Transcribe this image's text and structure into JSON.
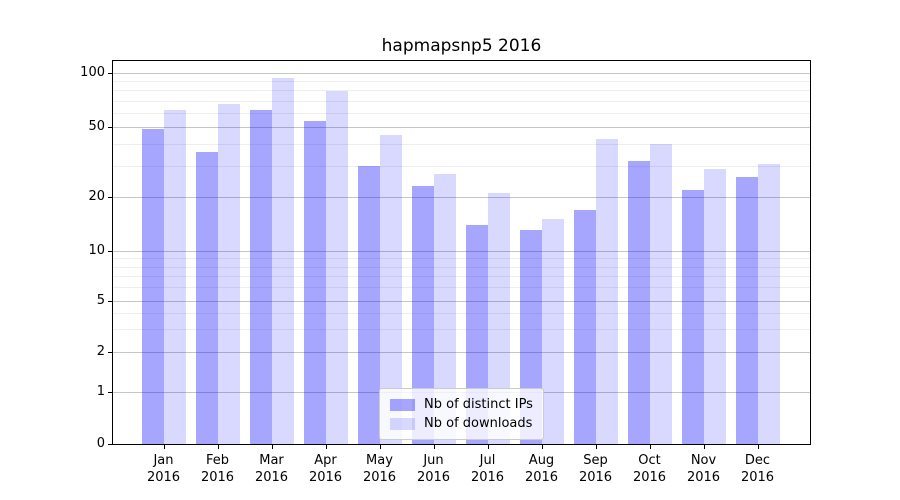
{
  "chart_data": {
    "type": "bar",
    "title": "hapmapsnp5 2016",
    "categories": [
      "Jan",
      "Feb",
      "Mar",
      "Apr",
      "May",
      "Jun",
      "Jul",
      "Aug",
      "Sep",
      "Oct",
      "Nov",
      "Dec"
    ],
    "x_tick_second_line": "2016",
    "series": [
      {
        "name": "Nb of distinct IPs",
        "color": "rgba(0,0,255,0.35)",
        "values": [
          49,
          36,
          62,
          54,
          30,
          23,
          14,
          13,
          17,
          32,
          22,
          26
        ]
      },
      {
        "name": "Nb of downloads",
        "color": "rgba(0,0,255,0.15)",
        "values": [
          62,
          67,
          94,
          79,
          45,
          27,
          21,
          15,
          43,
          40,
          29,
          31
        ]
      }
    ],
    "yscale": "symlog",
    "y_major_ticks": [
      0,
      1,
      2,
      5,
      10,
      20,
      50,
      100
    ],
    "y_minor_ticks": [
      3,
      4,
      6,
      7,
      8,
      9,
      30,
      40,
      60,
      70,
      80,
      90
    ],
    "ylim": [
      0,
      117
    ],
    "grid": "on",
    "legend_position": "lower center"
  },
  "colors": {
    "grid_major": "#c6c6c6",
    "grid_minor": "#eeeeee",
    "spine": "#000000",
    "background": "#ffffff"
  }
}
